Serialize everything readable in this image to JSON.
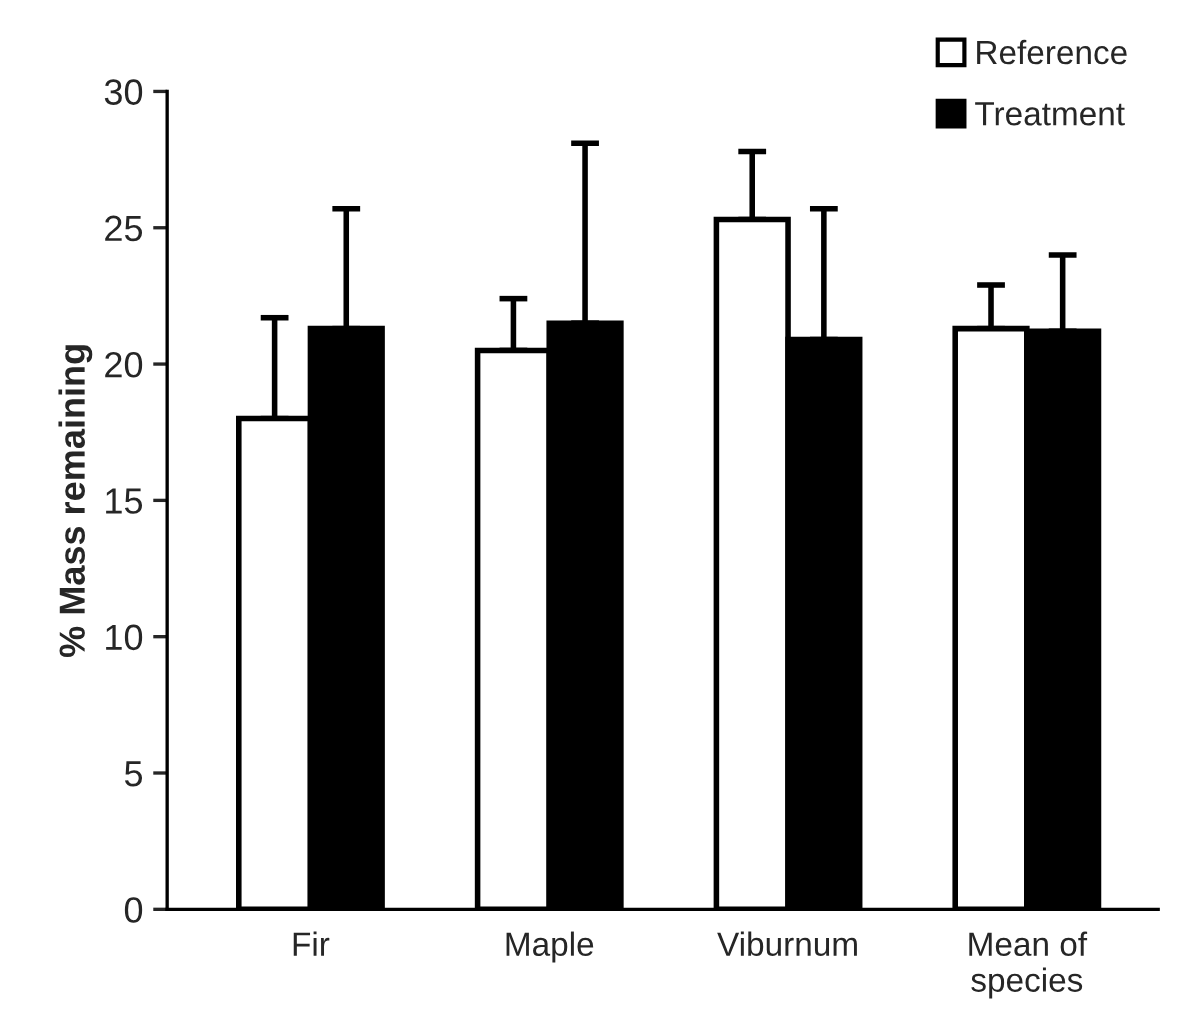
{
  "chart_data": {
    "type": "bar",
    "ylabel": "% Mass remaining",
    "categories": [
      "Fir",
      "Maple",
      "Viburnum",
      "Mean of\nspecies"
    ],
    "series": [
      {
        "name": "Reference",
        "color": "#ffffff",
        "values": [
          18.0,
          20.5,
          25.3,
          21.3
        ],
        "errors": [
          [
            18.0,
            21.7
          ],
          [
            20.5,
            22.4
          ],
          [
            25.3,
            27.8
          ],
          [
            21.3,
            22.9
          ]
        ]
      },
      {
        "name": "Treatment",
        "color": "#000000",
        "values": [
          21.3,
          21.5,
          20.9,
          21.2
        ],
        "errors": [
          [
            21.3,
            25.7
          ],
          [
            21.5,
            28.1
          ],
          [
            20.9,
            25.7
          ],
          [
            21.2,
            24.0
          ]
        ]
      }
    ],
    "ylim": [
      0,
      30
    ],
    "yticks": [
      0,
      5,
      10,
      15,
      20,
      25,
      30
    ],
    "grid": false,
    "legend": "top right"
  }
}
